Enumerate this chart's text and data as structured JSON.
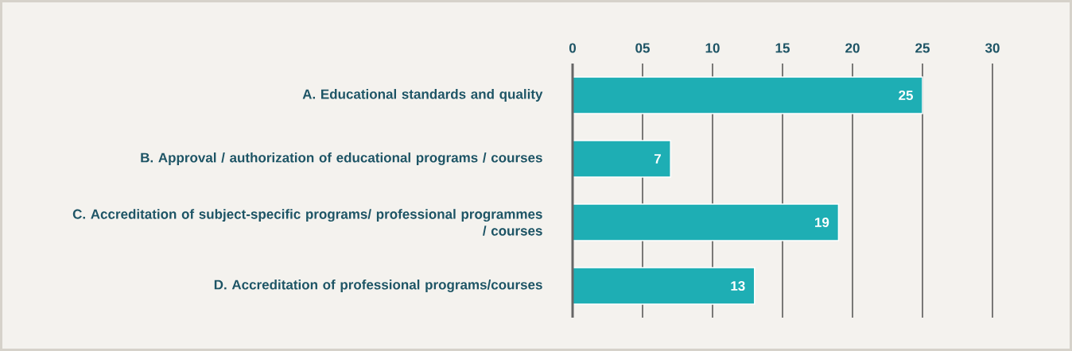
{
  "chart_data": {
    "type": "bar",
    "orientation": "horizontal",
    "categories": [
      "A. Educational standards and quality",
      "B. Approval / authorization of educational programs / courses",
      "C. Accreditation of subject-specific programs/ professional programmes / courses",
      "D. Accreditation of professional programs/courses"
    ],
    "values": [
      25,
      7,
      19,
      13
    ],
    "color": "#1eaeb4",
    "data_labels": true,
    "grid": "x",
    "xlim": [
      0,
      30
    ],
    "xticks": [
      0,
      {
        "value": 5,
        "label": "05"
      },
      10,
      15,
      20,
      25,
      30
    ]
  }
}
